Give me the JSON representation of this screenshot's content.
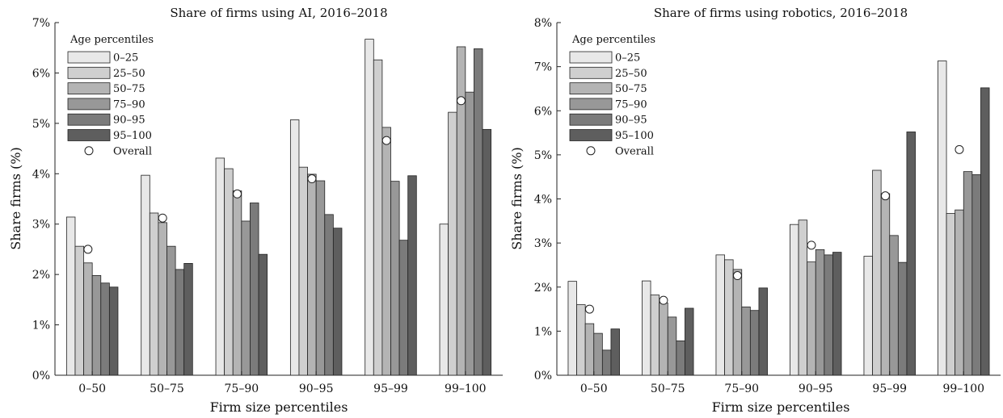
{
  "series_colors": [
    "#e8e8e8",
    "#cfcfcf",
    "#b4b4b4",
    "#989898",
    "#7b7b7b",
    "#5e5e5e"
  ],
  "chart_data": [
    {
      "type": "bar",
      "title": "Share of firms using AI, 2016–2018",
      "xlabel": "Firm size percentiles",
      "ylabel": "Share firms (%)",
      "ylim": [
        0,
        7
      ],
      "yticks": [
        0,
        1,
        2,
        3,
        4,
        5,
        6,
        7
      ],
      "ytick_labels": [
        "0%",
        "1%",
        "2%",
        "3%",
        "4%",
        "5%",
        "6%",
        "7%"
      ],
      "categories": [
        "0–50",
        "50–75",
        "75–90",
        "90–95",
        "95–99",
        "99–100"
      ],
      "legend_title": "Age percentiles",
      "legend_position": "top-left",
      "overall_label": "Overall",
      "series": [
        {
          "name": "0–25",
          "values": [
            3.14,
            3.97,
            4.31,
            5.07,
            6.67,
            3.0
          ]
        },
        {
          "name": "25–50",
          "values": [
            2.56,
            3.22,
            4.1,
            4.13,
            6.26,
            5.22
          ]
        },
        {
          "name": "50–75",
          "values": [
            2.23,
            3.03,
            3.66,
            3.99,
            4.92,
            6.52
          ]
        },
        {
          "name": "75–90",
          "values": [
            1.98,
            2.56,
            3.06,
            3.86,
            3.85,
            5.62
          ]
        },
        {
          "name": "90–95",
          "values": [
            1.83,
            2.1,
            3.42,
            3.19,
            2.68,
            6.48
          ]
        },
        {
          "name": "95–100",
          "values": [
            1.75,
            2.22,
            2.4,
            2.92,
            3.96,
            4.88
          ]
        }
      ],
      "overall": [
        2.5,
        3.12,
        3.6,
        3.9,
        4.66,
        5.45
      ]
    },
    {
      "type": "bar",
      "title": "Share of firms using robotics, 2016–2018",
      "xlabel": "Firm size percentiles",
      "ylabel": "Share firms (%)",
      "ylim": [
        0,
        8
      ],
      "yticks": [
        0,
        1,
        2,
        3,
        4,
        5,
        6,
        7,
        8
      ],
      "ytick_labels": [
        "0%",
        "1%",
        "2%",
        "3%",
        "4%",
        "5%",
        "6%",
        "7%",
        "8%"
      ],
      "categories": [
        "0–50",
        "50–75",
        "75–90",
        "90–95",
        "95–99",
        "99–100"
      ],
      "legend_title": "Age percentiles",
      "legend_position": "top-left",
      "overall_label": "Overall",
      "series": [
        {
          "name": "0–25",
          "values": [
            2.13,
            2.14,
            2.73,
            3.42,
            2.7,
            7.13
          ]
        },
        {
          "name": "25–50",
          "values": [
            1.6,
            1.82,
            2.62,
            3.52,
            4.65,
            3.67
          ]
        },
        {
          "name": "50–75",
          "values": [
            1.17,
            1.64,
            2.4,
            2.57,
            4.12,
            3.75
          ]
        },
        {
          "name": "75–90",
          "values": [
            0.95,
            1.32,
            1.55,
            2.85,
            3.17,
            4.62
          ]
        },
        {
          "name": "90–95",
          "values": [
            0.57,
            0.78,
            1.47,
            2.73,
            2.56,
            4.55
          ]
        },
        {
          "name": "95–100",
          "values": [
            1.05,
            1.52,
            1.98,
            2.79,
            5.52,
            6.52
          ]
        }
      ],
      "overall": [
        1.5,
        1.7,
        2.26,
        2.95,
        4.07,
        5.12
      ]
    }
  ]
}
